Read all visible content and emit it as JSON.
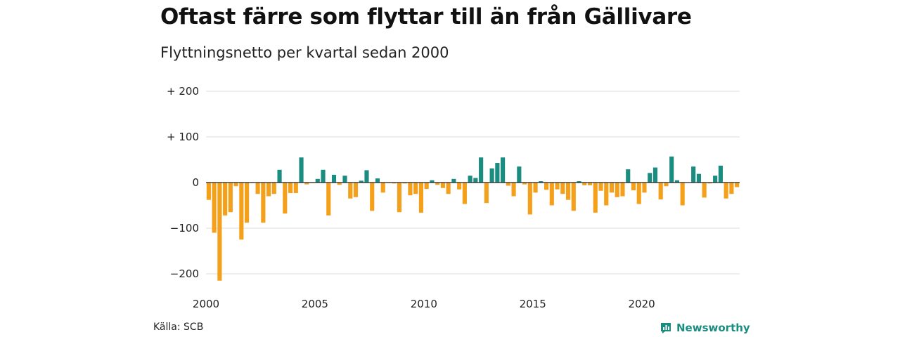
{
  "header": {
    "title": "Oftast färre som flyttar till än från Gällivare",
    "subtitle": "Flyttningsnetto per kvartal sedan 2000"
  },
  "footer": {
    "source": "Källa: SCB",
    "brand": "Newsworthy",
    "brand_icon": "newsworthy-logo-icon"
  },
  "colors": {
    "positive": "#1a8c80",
    "negative": "#f5a01a",
    "grid": "#dddddd",
    "zero_line": "#222222"
  },
  "chart_data": {
    "type": "bar",
    "title": "Oftast färre som flyttar till än från Gällivare",
    "subtitle": "Flyttningsnetto per kvartal sedan 2000",
    "xlabel": "",
    "ylabel": "",
    "ylim": [
      -215,
      200
    ],
    "xlim": [
      2000,
      2024.5
    ],
    "y_ticks": [
      200,
      100,
      0,
      -100,
      -200
    ],
    "y_tick_labels": [
      "+ 200",
      "+ 100",
      "0",
      "−100",
      "−200"
    ],
    "x_ticks": [
      2000,
      2005,
      2010,
      2015,
      2020
    ],
    "x_tick_labels": [
      "2000",
      "2005",
      "2010",
      "2015",
      "2020"
    ],
    "grid": true,
    "legend": "none",
    "start": "2000 Q1",
    "frequency": "quarterly",
    "values": [
      -38,
      -110,
      -215,
      -72,
      -65,
      -8,
      -125,
      -88,
      -1,
      -25,
      -88,
      -30,
      -25,
      28,
      -68,
      -23,
      -23,
      55,
      -4,
      -1,
      8,
      28,
      -72,
      17,
      -5,
      15,
      -35,
      -32,
      4,
      27,
      -62,
      9,
      -22,
      -1,
      -2,
      -65,
      -2,
      -28,
      -25,
      -66,
      -14,
      5,
      -5,
      -12,
      -25,
      8,
      -15,
      -47,
      15,
      10,
      55,
      -45,
      31,
      43,
      55,
      -7,
      -30,
      35,
      -4,
      -70,
      -22,
      3,
      -16,
      -50,
      -15,
      -25,
      -38,
      -62,
      3,
      -6,
      -6,
      -66,
      -18,
      -50,
      -22,
      -32,
      -30,
      29,
      -17,
      -47,
      -22,
      21,
      33,
      -37,
      -8,
      57,
      5,
      -50,
      0,
      35,
      19,
      -33,
      -2,
      15,
      37,
      -35,
      -25,
      -10
    ]
  }
}
